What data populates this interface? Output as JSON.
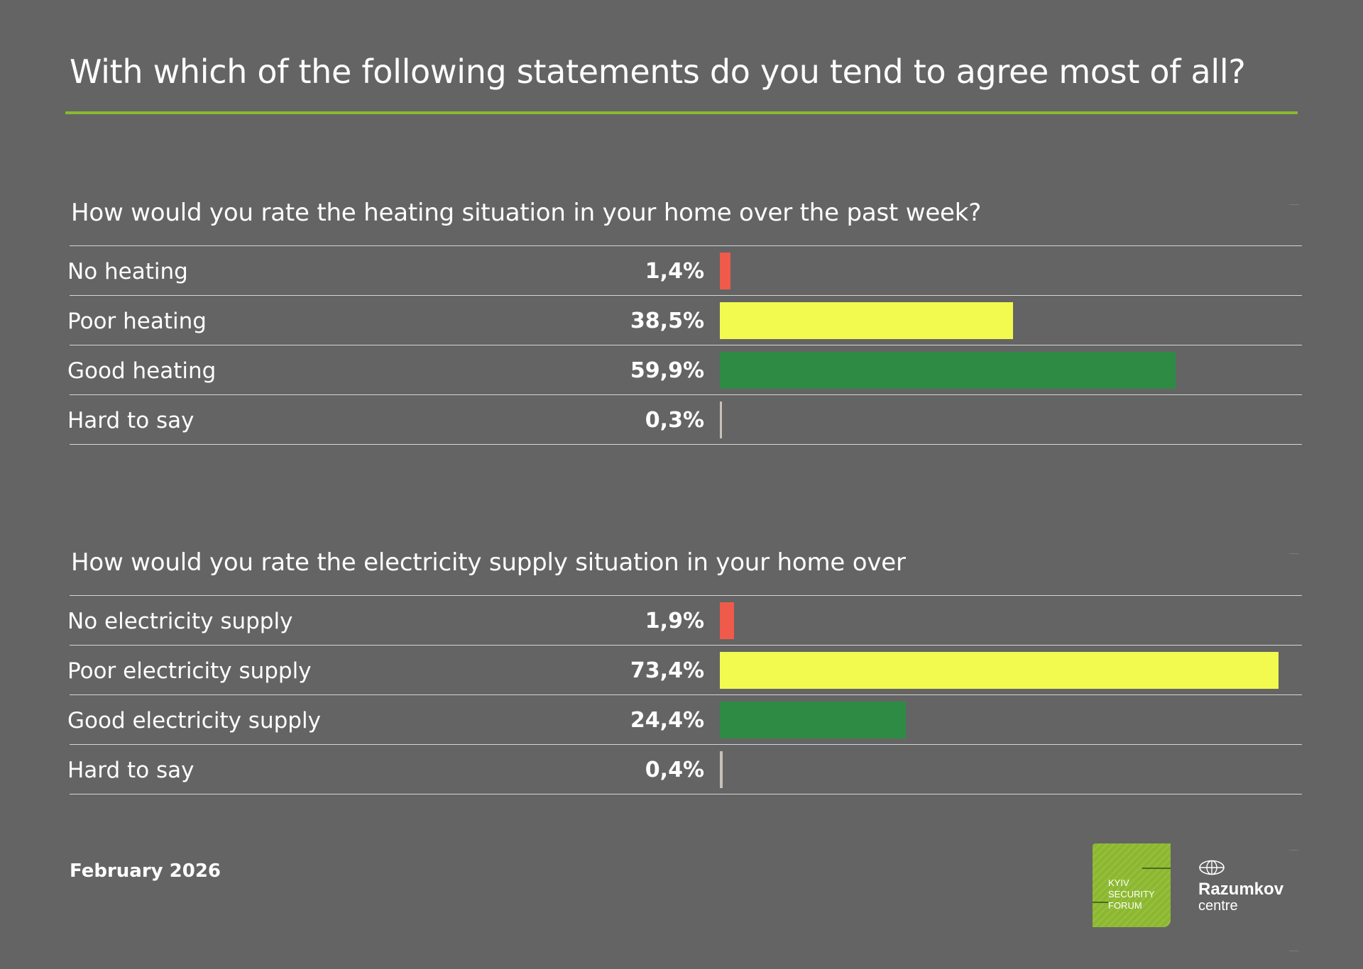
{
  "title": "With which of the following statements do you tend to agree most of all?",
  "colors": {
    "background": "#646464",
    "accent": "#8cb82f",
    "no": "#f05a4b",
    "poor": "#f2fa50",
    "good": "#2e8b44",
    "hard": "#c8c0b8"
  },
  "chart_data": [
    {
      "type": "bar",
      "orientation": "horizontal",
      "title": "How would you rate the heating situation in your home over the past week?",
      "categories": [
        "No heating",
        "Poor heating",
        "Good heating",
        "Hard to say"
      ],
      "values": [
        1.4,
        38.5,
        59.9,
        0.3
      ],
      "value_labels": [
        "1,4%",
        "38,5%",
        "59,9%",
        "0,3%"
      ],
      "bar_colors": [
        "#f05a4b",
        "#f2fa50",
        "#2e8b44",
        "#c8c0b8"
      ],
      "xlim": [
        0,
        75
      ],
      "grid": false
    },
    {
      "type": "bar",
      "orientation": "horizontal",
      "title": "How would you rate the electricity supply situation in your home over",
      "categories": [
        "No electricity supply",
        "Poor electricity supply",
        "Good electricity supply",
        "Hard to say"
      ],
      "values": [
        1.9,
        73.4,
        24.4,
        0.4
      ],
      "value_labels": [
        "1,9%",
        "73,4%",
        "24,4%",
        "0,4%"
      ],
      "bar_colors": [
        "#f05a4b",
        "#f2fa50",
        "#2e8b44",
        "#c8c0b8"
      ],
      "xlim": [
        0,
        75
      ],
      "grid": false
    }
  ],
  "footer": {
    "date": "February 2026",
    "ksf_logo": {
      "line1": "KYIV",
      "line2": "SECURITY",
      "line3": "FORUM"
    },
    "razumkov": {
      "icon": "globe-icon",
      "name": "Razumkov",
      "sub": "centre"
    }
  }
}
